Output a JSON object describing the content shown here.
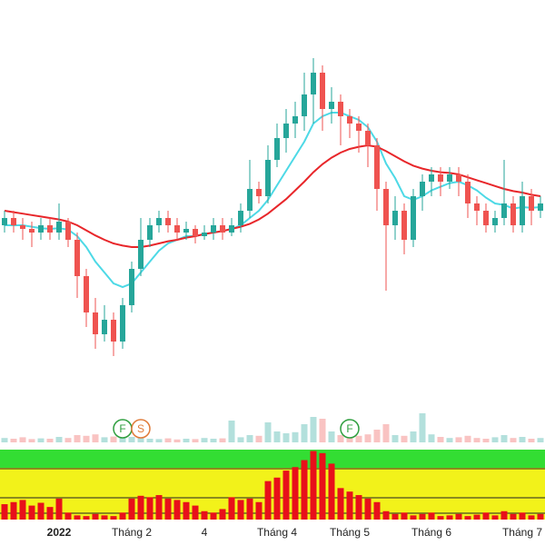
{
  "chart_data": {
    "type": "candlestick",
    "categories": [
      null,
      null,
      null,
      null,
      null,
      null,
      "2022",
      null,
      null,
      null,
      null,
      null,
      null,
      null,
      "Tháng 2",
      null,
      null,
      null,
      null,
      null,
      null,
      null,
      "4",
      null,
      null,
      null,
      null,
      null,
      null,
      null,
      "Tháng 4",
      null,
      null,
      null,
      null,
      null,
      null,
      null,
      "Tháng 5",
      null,
      null,
      null,
      null,
      null,
      null,
      null,
      null,
      "Tháng 6",
      null,
      null,
      null,
      null,
      null,
      null,
      null,
      null,
      null,
      "Tháng 7",
      null,
      null
    ],
    "ohlc": [
      [
        44,
        46,
        43,
        45
      ],
      [
        45,
        46,
        43,
        44
      ],
      [
        44,
        45,
        42,
        43.5
      ],
      [
        43.5,
        44.5,
        41,
        43
      ],
      [
        43,
        45,
        42,
        44
      ],
      [
        44,
        45,
        42,
        43
      ],
      [
        43,
        47,
        42,
        44.5
      ],
      [
        44.5,
        45,
        41,
        42
      ],
      [
        42,
        43,
        34,
        37
      ],
      [
        37,
        38,
        30,
        32
      ],
      [
        32,
        34,
        27,
        29
      ],
      [
        29,
        33,
        28,
        31
      ],
      [
        31,
        32,
        26,
        28
      ],
      [
        28,
        34,
        27,
        33
      ],
      [
        33,
        39,
        32,
        38
      ],
      [
        38,
        45,
        37,
        42
      ],
      [
        42,
        45,
        41,
        44
      ],
      [
        44,
        46,
        43,
        45
      ],
      [
        45,
        46,
        43,
        44
      ],
      [
        44,
        45,
        42,
        43
      ],
      [
        43,
        44.5,
        42,
        43.5
      ],
      [
        43.5,
        44,
        41.5,
        42.5
      ],
      [
        42.5,
        44,
        42,
        43
      ],
      [
        43,
        45,
        42,
        44
      ],
      [
        44,
        45,
        42,
        43
      ],
      [
        43,
        45,
        42.5,
        44
      ],
      [
        44,
        47,
        43,
        46
      ],
      [
        46,
        53,
        45,
        49
      ],
      [
        49,
        50,
        47,
        48
      ],
      [
        48,
        55,
        47,
        53
      ],
      [
        53,
        58,
        52,
        56
      ],
      [
        56,
        60,
        54,
        58
      ],
      [
        58,
        61,
        56,
        59
      ],
      [
        59,
        65,
        57,
        62
      ],
      [
        62,
        67,
        58,
        65
      ],
      [
        65,
        66,
        57,
        60
      ],
      [
        60,
        63,
        58,
        61
      ],
      [
        61,
        62,
        55,
        59
      ],
      [
        59,
        60,
        56,
        58
      ],
      [
        58,
        59,
        54,
        57
      ],
      [
        57,
        58,
        52,
        55
      ],
      [
        55,
        56,
        46,
        49
      ],
      [
        49,
        50,
        35,
        44
      ],
      [
        44,
        48,
        42,
        46
      ],
      [
        46,
        47,
        40,
        42
      ],
      [
        42,
        49,
        41,
        48
      ],
      [
        48,
        51,
        46,
        50
      ],
      [
        50,
        52,
        48,
        51
      ],
      [
        51,
        52,
        48,
        50
      ],
      [
        50,
        52,
        49,
        51
      ],
      [
        51,
        52,
        48,
        50
      ],
      [
        50,
        51,
        45,
        47
      ],
      [
        47,
        48,
        44,
        46
      ],
      [
        46,
        47,
        43,
        44
      ],
      [
        44,
        46,
        43,
        45
      ],
      [
        45,
        53,
        44,
        47
      ],
      [
        47,
        48,
        43,
        44
      ],
      [
        44,
        50,
        43,
        48
      ],
      [
        48,
        49,
        44,
        46
      ],
      [
        46,
        48,
        45,
        47
      ]
    ],
    "up_color": "#26a69a",
    "down_color": "#ef5350",
    "ylim": [
      20,
      75
    ],
    "series": [
      {
        "color": "#4dd9e6",
        "values": [
          44,
          44,
          44,
          43.8,
          43.6,
          43.5,
          43.6,
          43.4,
          42.5,
          41,
          39,
          37.5,
          36,
          35.5,
          36,
          37.5,
          39,
          40.5,
          41.5,
          42,
          42.5,
          42.5,
          42.8,
          43,
          43.2,
          43.5,
          44,
          45,
          46,
          47.5,
          49.5,
          51.5,
          53.5,
          55.5,
          58,
          59,
          59.5,
          59.5,
          59,
          58.5,
          57.5,
          55.5,
          52.5,
          50.5,
          48,
          47.5,
          48,
          48.8,
          49.3,
          49.8,
          50,
          49.5,
          48.8,
          47.8,
          47,
          46.8,
          46.3,
          46.5,
          46.4,
          46.5
        ]
      },
      {
        "color": "#e8262a",
        "values": [
          46,
          45.8,
          45.6,
          45.4,
          45.2,
          45,
          44.8,
          44.5,
          44,
          43.3,
          42.6,
          42,
          41.5,
          41.2,
          41,
          41,
          41.2,
          41.5,
          41.8,
          42,
          42.3,
          42.5,
          42.8,
          43,
          43.2,
          43.5,
          43.8,
          44.2,
          44.8,
          45.6,
          46.6,
          47.6,
          48.8,
          50,
          51.3,
          52.4,
          53.3,
          54,
          54.5,
          54.8,
          55,
          54.8,
          54.2,
          53.5,
          52.8,
          52.2,
          51.8,
          51.5,
          51.3,
          51.2,
          51,
          50.6,
          50.2,
          49.8,
          49.4,
          49,
          48.7,
          48.5,
          48.2,
          48
        ]
      }
    ],
    "volume": [
      12,
      10,
      14,
      9,
      11,
      10,
      15,
      12,
      20,
      18,
      22,
      14,
      16,
      18,
      15,
      12,
      10,
      9,
      11,
      8,
      10,
      9,
      12,
      10,
      11,
      60,
      14,
      20,
      18,
      55,
      30,
      25,
      28,
      50,
      70,
      65,
      30,
      20,
      25,
      18,
      22,
      35,
      50,
      20,
      18,
      30,
      80,
      22,
      15,
      12,
      14,
      18,
      12,
      10,
      14,
      20,
      12,
      15,
      10,
      12
    ],
    "volume_ylim": [
      0,
      100
    ],
    "indicator": [
      22,
      25,
      28,
      20,
      24,
      18,
      30,
      10,
      6,
      5,
      8,
      6,
      5,
      10,
      30,
      34,
      32,
      35,
      30,
      28,
      25,
      20,
      12,
      10,
      15,
      32,
      28,
      30,
      25,
      55,
      60,
      70,
      75,
      85,
      98,
      95,
      80,
      45,
      40,
      35,
      30,
      25,
      12,
      8,
      10,
      6,
      8,
      10,
      5,
      6,
      8,
      5,
      7,
      10,
      6,
      12,
      8,
      10,
      6,
      8
    ],
    "indicator_ylim": [
      0,
      100
    ],
    "annotations": [
      {
        "text": "F",
        "x": 13,
        "color": "#2e9e3e"
      },
      {
        "text": "S",
        "x": 15,
        "color": "#e07b39"
      },
      {
        "text": "F",
        "x": 38,
        "color": "#2e9e3e"
      }
    ]
  }
}
